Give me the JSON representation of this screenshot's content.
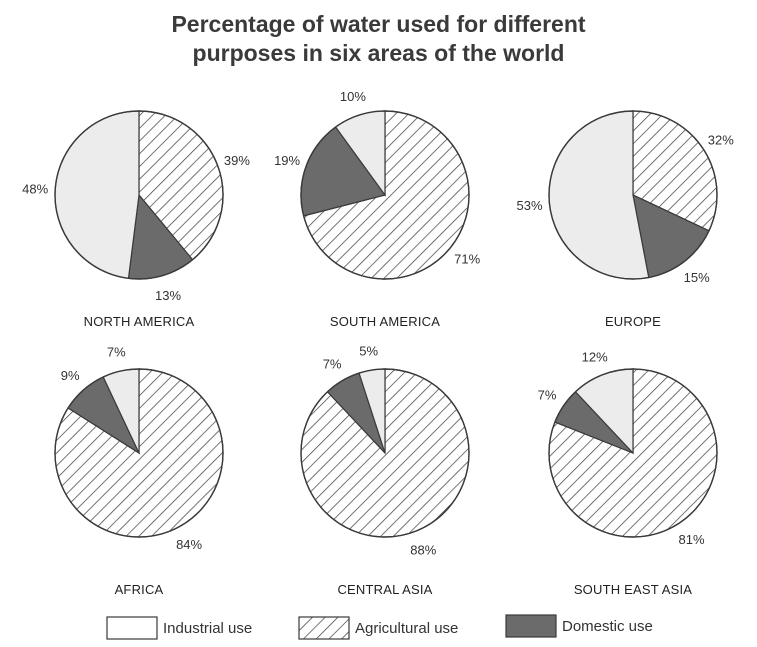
{
  "title": {
    "line1": "Percentage of water used for different",
    "line2": "purposes in six areas of the world"
  },
  "legend": [
    {
      "key": "industrial",
      "label": "Industrial use"
    },
    {
      "key": "agricultural",
      "label": "Agricultural use"
    },
    {
      "key": "domestic",
      "label": "Domestic use"
    }
  ],
  "colors": {
    "industrial": "#ececec",
    "agricultural_bg": "#ffffff",
    "agricultural_hatch": "#3a3a3a",
    "domestic": "#6b6b6b",
    "stroke": "#3a3a3a"
  },
  "chart_data": [
    {
      "type": "pie",
      "title": "NORTH AMERICA",
      "categories": [
        "Agricultural use",
        "Domestic use",
        "Industrial use"
      ],
      "values": [
        39,
        13,
        48
      ],
      "labels": [
        "39%",
        "13%",
        "48%"
      ]
    },
    {
      "type": "pie",
      "title": "SOUTH AMERICA",
      "categories": [
        "Agricultural use",
        "Domestic use",
        "Industrial use"
      ],
      "values": [
        71,
        19,
        10
      ],
      "labels": [
        "71%",
        "19%",
        "10%"
      ]
    },
    {
      "type": "pie",
      "title": "EUROPE",
      "categories": [
        "Agricultural use",
        "Domestic use",
        "Industrial use"
      ],
      "values": [
        32,
        15,
        53
      ],
      "labels": [
        "32%",
        "15%",
        "53%"
      ]
    },
    {
      "type": "pie",
      "title": "AFRICA",
      "categories": [
        "Agricultural use",
        "Domestic use",
        "Industrial use"
      ],
      "values": [
        84,
        9,
        7
      ],
      "labels": [
        "84%",
        "9%",
        "7%"
      ]
    },
    {
      "type": "pie",
      "title": "CENTRAL ASIA",
      "categories": [
        "Agricultural use",
        "Domestic use",
        "Industrial use"
      ],
      "values": [
        88,
        7,
        5
      ],
      "labels": [
        "88%",
        "7%",
        "5%"
      ]
    },
    {
      "type": "pie",
      "title": "SOUTH EAST ASIA",
      "categories": [
        "Agricultural use",
        "Domestic use",
        "Industrial use"
      ],
      "values": [
        81,
        7,
        12
      ],
      "labels": [
        "81%",
        "7%",
        "12%"
      ]
    }
  ]
}
